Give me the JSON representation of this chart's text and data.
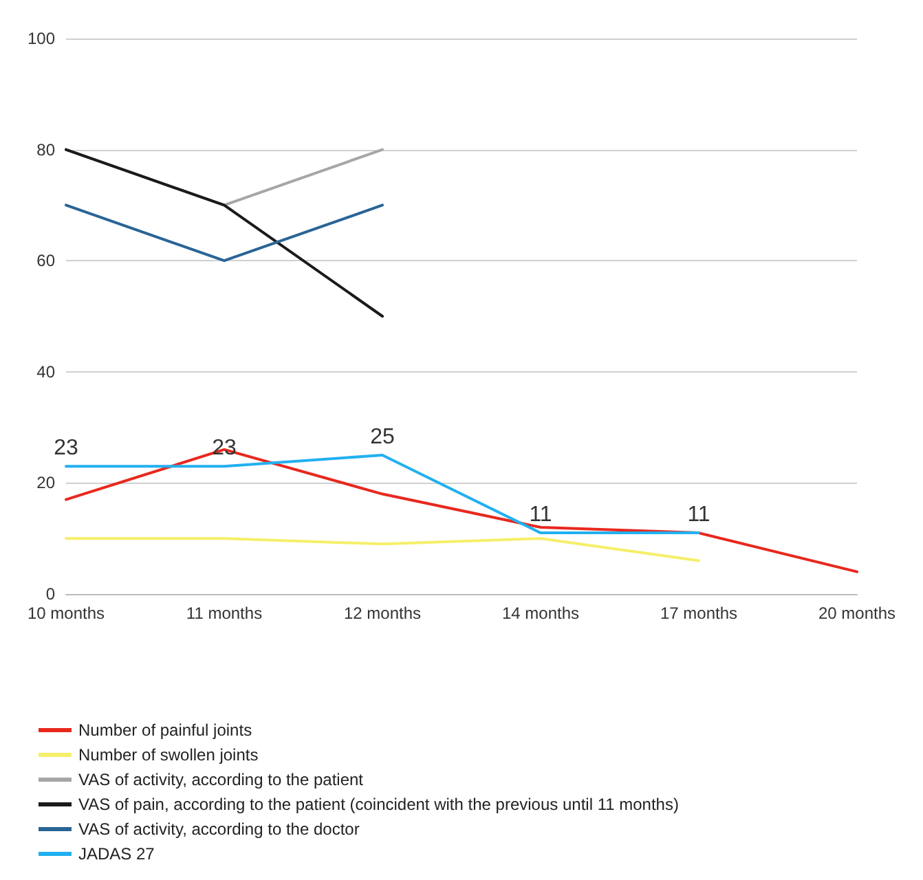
{
  "chart_data": {
    "type": "line",
    "categories": [
      "10 months",
      "11 months",
      "12 months",
      "14 months",
      "17 months",
      "20 months"
    ],
    "ylim": [
      0,
      100
    ],
    "yticks": [
      0,
      20,
      40,
      60,
      80,
      100
    ],
    "grid": "y",
    "legend": "bottom",
    "marker": "none",
    "line_style": "solid",
    "series": [
      {
        "name": "Number of painful joints",
        "color": "#e8281e",
        "values": [
          17,
          26,
          18,
          12,
          11,
          4
        ]
      },
      {
        "name": "Number of swollen joints",
        "color": "#f5ef6a",
        "values": [
          10,
          10,
          9,
          10,
          6,
          null
        ]
      },
      {
        "name": "VAS of activity, according to the patient",
        "color": "#a6a6a6",
        "values": [
          80,
          70,
          80,
          null,
          null,
          null
        ]
      },
      {
        "name": "VAS of pain, according to the patient (coincident with the previous until 11 months)",
        "color": "#1a1a1a",
        "values": [
          80,
          70,
          50,
          null,
          null,
          null
        ]
      },
      {
        "name": "VAS of activity, according to the doctor",
        "color": "#2a6496",
        "values": [
          70,
          60,
          70,
          null,
          null,
          null
        ]
      },
      {
        "name": "JADAS 27",
        "color": "#22b0f0",
        "values": [
          23,
          23,
          25,
          11,
          11,
          null
        ],
        "value_labels": [
          "23",
          "23",
          "25",
          "11",
          "11",
          null
        ]
      }
    ]
  }
}
